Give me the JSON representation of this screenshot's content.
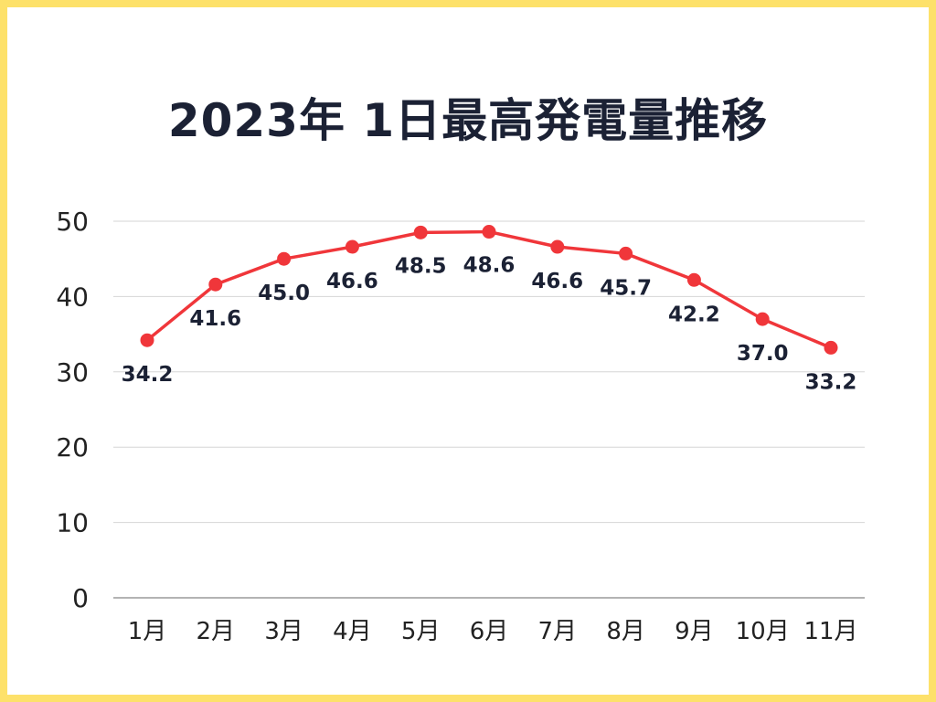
{
  "page": {
    "background": "#ffffff",
    "border_color": "#fde16a"
  },
  "chart_data": {
    "type": "line",
    "title": "2023年 1日最高発電量推移",
    "categories": [
      "1月",
      "2月",
      "3月",
      "4月",
      "5月",
      "6月",
      "7月",
      "8月",
      "9月",
      "10月",
      "11月"
    ],
    "values": [
      34.2,
      41.6,
      45.0,
      46.6,
      48.5,
      48.6,
      46.6,
      45.7,
      42.2,
      37.0,
      33.2
    ],
    "data_labels": [
      "34.2",
      "41.6",
      "45.0",
      "46.6",
      "48.5",
      "48.6",
      "46.6",
      "45.7",
      "42.2",
      "37.0",
      "33.2"
    ],
    "yticks": [
      0,
      10,
      20,
      30,
      40,
      50
    ],
    "ylim": [
      0,
      50
    ],
    "grid": true,
    "legend": "none",
    "line_color": "#f0363a",
    "text_color": "#1b2134",
    "grid_color": "#d6d6d6"
  }
}
